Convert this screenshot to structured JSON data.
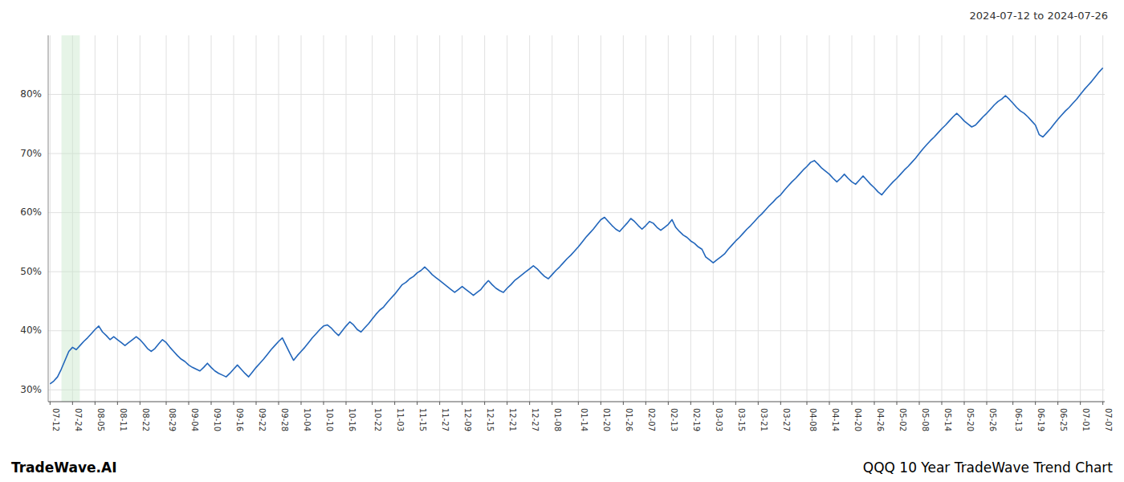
{
  "chart_data": {
    "type": "line",
    "title": "2024-07-12 to 2024-07-26",
    "annotations": [
      "TradeWave.AI",
      "QQQ 10 Year TradeWave Trend Chart"
    ],
    "color": "#2266bb",
    "grid": true,
    "ylim": [
      28,
      90
    ],
    "yticks": [
      {
        "value": 30,
        "label": "30%"
      },
      {
        "value": 40,
        "label": "40%"
      },
      {
        "value": 50,
        "label": "50%"
      },
      {
        "value": 60,
        "label": "60%"
      },
      {
        "value": 70,
        "label": "70%"
      },
      {
        "value": 80,
        "label": "80%"
      }
    ],
    "highlight": [
      3.0543478260869565,
      7.94130434782609
    ],
    "highlight_color": "#c8e6c9",
    "categories": [
      "07-12",
      null,
      null,
      null,
      null,
      null,
      "07-24",
      null,
      null,
      null,
      null,
      null,
      "08-05",
      null,
      null,
      null,
      null,
      null,
      "08-11",
      null,
      null,
      null,
      null,
      null,
      "08-22",
      null,
      null,
      null,
      null,
      null,
      null,
      "08-29",
      null,
      null,
      null,
      null,
      null,
      "09-04",
      null,
      null,
      null,
      null,
      null,
      "09-10",
      null,
      null,
      null,
      null,
      null,
      "09-16",
      null,
      null,
      null,
      null,
      null,
      "09-22",
      null,
      null,
      null,
      null,
      null,
      "09-28",
      null,
      null,
      null,
      null,
      null,
      "10-04",
      null,
      null,
      null,
      null,
      null,
      "10-10",
      null,
      null,
      null,
      null,
      null,
      "10-16",
      null,
      null,
      null,
      null,
      null,
      null,
      "10-22",
      null,
      null,
      null,
      null,
      null,
      "11-03",
      null,
      null,
      null,
      null,
      null,
      "11-15",
      null,
      null,
      null,
      null,
      null,
      "11-27",
      null,
      null,
      null,
      null,
      null,
      "12-09",
      null,
      null,
      null,
      null,
      null,
      "12-15",
      null,
      null,
      null,
      null,
      null,
      "12-21",
      null,
      null,
      null,
      null,
      null,
      "12-27",
      null,
      null,
      null,
      null,
      null,
      "01-08",
      null,
      null,
      null,
      null,
      null,
      null,
      "01-14",
      null,
      null,
      null,
      null,
      null,
      "01-20",
      null,
      null,
      null,
      null,
      null,
      "01-26",
      null,
      null,
      null,
      null,
      null,
      "02-07",
      null,
      null,
      null,
      null,
      null,
      "02-13",
      null,
      null,
      null,
      null,
      null,
      "02-19",
      null,
      null,
      null,
      null,
      null,
      "03-03",
      null,
      null,
      null,
      null,
      null,
      "03-15",
      null,
      null,
      null,
      null,
      null,
      "03-21",
      null,
      null,
      null,
      null,
      null,
      "03-27",
      null,
      null,
      null,
      null,
      null,
      null,
      "04-08",
      null,
      null,
      null,
      null,
      null,
      "04-14",
      null,
      null,
      null,
      null,
      null,
      "04-20",
      null,
      null,
      null,
      null,
      null,
      "04-26",
      null,
      null,
      null,
      null,
      null,
      "05-02",
      null,
      null,
      null,
      null,
      null,
      "05-08",
      null,
      null,
      null,
      null,
      null,
      "05-14",
      null,
      null,
      null,
      null,
      null,
      "05-20",
      null,
      null,
      null,
      null,
      null,
      "05-26",
      null,
      null,
      null,
      null,
      null,
      null,
      "06-13",
      null,
      null,
      null,
      null,
      null,
      "06-19",
      null,
      null,
      null,
      null,
      null,
      "06-25",
      null,
      null,
      null,
      null,
      null,
      "07-01",
      null,
      null,
      null,
      null,
      null,
      "07-07"
    ],
    "values": [
      31.0,
      31.5,
      32.2,
      33.5,
      35.0,
      36.5,
      37.2,
      36.8,
      37.5,
      38.2,
      38.8,
      39.5,
      40.2,
      40.8,
      39.8,
      39.2,
      38.5,
      39.0,
      38.5,
      38.0,
      37.5,
      38.0,
      38.5,
      39.0,
      38.5,
      37.8,
      37.0,
      36.5,
      37.0,
      37.8,
      38.5,
      38.0,
      37.2,
      36.5,
      35.8,
      35.2,
      34.8,
      34.2,
      33.8,
      33.5,
      33.2,
      33.8,
      34.5,
      33.8,
      33.2,
      32.8,
      32.5,
      32.2,
      32.8,
      33.5,
      34.2,
      33.5,
      32.8,
      32.2,
      33.0,
      33.8,
      34.5,
      35.2,
      36.0,
      36.8,
      37.5,
      38.2,
      38.8,
      37.5,
      36.2,
      35.0,
      35.8,
      36.5,
      37.2,
      38.0,
      38.8,
      39.5,
      40.2,
      40.8,
      41.0,
      40.5,
      39.8,
      39.2,
      40.0,
      40.8,
      41.5,
      41.0,
      40.2,
      39.8,
      40.5,
      41.2,
      42.0,
      42.8,
      43.5,
      44.0,
      44.8,
      45.5,
      46.2,
      47.0,
      47.8,
      48.2,
      48.8,
      49.2,
      49.8,
      50.2,
      50.8,
      50.2,
      49.5,
      49.0,
      48.5,
      48.0,
      47.5,
      47.0,
      46.5,
      47.0,
      47.5,
      47.0,
      46.5,
      46.0,
      46.5,
      47.0,
      47.8,
      48.5,
      47.8,
      47.2,
      46.8,
      46.5,
      47.2,
      47.8,
      48.5,
      49.0,
      49.5,
      50.0,
      50.5,
      51.0,
      50.5,
      49.8,
      49.2,
      48.8,
      49.5,
      50.2,
      50.8,
      51.5,
      52.2,
      52.8,
      53.5,
      54.2,
      55.0,
      55.8,
      56.5,
      57.2,
      58.0,
      58.8,
      59.2,
      58.5,
      57.8,
      57.2,
      56.8,
      57.5,
      58.2,
      59.0,
      58.5,
      57.8,
      57.2,
      57.8,
      58.5,
      58.2,
      57.5,
      57.0,
      57.5,
      58.0,
      58.8,
      57.5,
      56.8,
      56.2,
      55.8,
      55.2,
      54.8,
      54.2,
      53.8,
      52.5,
      52.0,
      51.5,
      52.0,
      52.5,
      53.0,
      53.8,
      54.5,
      55.2,
      55.8,
      56.5,
      57.2,
      57.8,
      58.5,
      59.2,
      59.8,
      60.5,
      61.2,
      61.8,
      62.5,
      63.0,
      63.8,
      64.5,
      65.2,
      65.8,
      66.5,
      67.2,
      67.8,
      68.5,
      68.8,
      68.2,
      67.5,
      67.0,
      66.5,
      65.8,
      65.2,
      65.8,
      66.5,
      65.8,
      65.2,
      64.8,
      65.5,
      66.2,
      65.5,
      64.8,
      64.2,
      63.5,
      63.0,
      63.8,
      64.5,
      65.2,
      65.8,
      66.5,
      67.2,
      67.8,
      68.5,
      69.2,
      70.0,
      70.8,
      71.5,
      72.2,
      72.8,
      73.5,
      74.2,
      74.8,
      75.5,
      76.2,
      76.8,
      76.2,
      75.5,
      75.0,
      74.5,
      74.8,
      75.5,
      76.2,
      76.8,
      77.5,
      78.2,
      78.8,
      79.2,
      79.8,
      79.2,
      78.5,
      77.8,
      77.2,
      76.8,
      76.2,
      75.5,
      74.8,
      73.2,
      72.8,
      73.5,
      74.2,
      75.0,
      75.8,
      76.5,
      77.2,
      77.8,
      78.5,
      79.2,
      80.0,
      80.8,
      81.5,
      82.2,
      83.0,
      83.8,
      84.5
    ]
  }
}
